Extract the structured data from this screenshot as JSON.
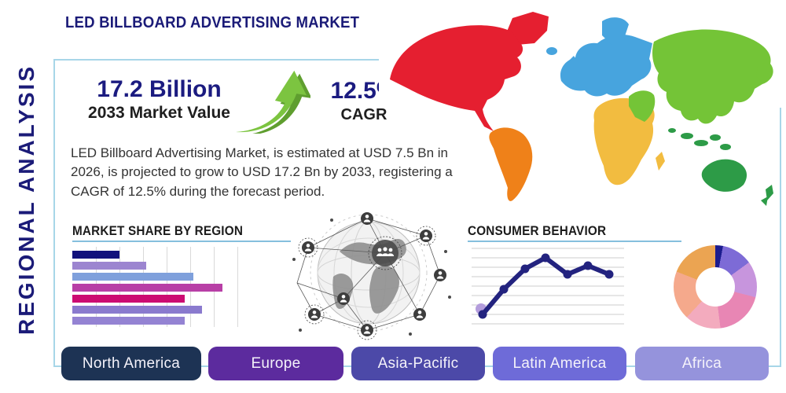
{
  "title": "LED BILLBOARD ADVERTISING MARKET",
  "side_label": "REGIONAL ANALYSIS",
  "stats": {
    "market_value": "17.2 Billion",
    "market_value_label": "2033 Market Value",
    "cagr_value": "12.5%",
    "cagr_label": "CAGR"
  },
  "description": "LED Billboard Advertising Market, is estimated at USD 7.5 Bn in 2026, is projected to grow to USD 17.2 Bn by 2033, registering a CAGR of 12.5% during the forecast period.",
  "sections": {
    "market_share_title": "MARKET SHARE BY REGION",
    "consumer_behavior_title": "CONSUMER BEHAVIOR"
  },
  "region_buttons": [
    {
      "label": "North America",
      "color": "#1d3354"
    },
    {
      "label": "Europe",
      "color": "#5c2b9e"
    },
    {
      "label": "Asia-Pacific",
      "color": "#4c49a8"
    },
    {
      "label": "Latin America",
      "color": "#6e6bd8"
    },
    {
      "label": "Africa",
      "color": "#9593dc"
    }
  ],
  "accent_colors": {
    "navy": "#1b1b78",
    "panel_border": "#a7d6e8",
    "heading_underline": "#85bfdd",
    "growth_arrow_green": "#7cc440",
    "growth_arrow_shadow": "#5f9e2f"
  },
  "map": {
    "region_colors": {
      "north_america": "#e51f30",
      "greenland": "#e51f30",
      "south_america": "#ef8119",
      "europe": "#47a4de",
      "africa": "#f2bc40",
      "asia": "#74c437",
      "middle_east": "#74c437",
      "australia": "#2d9b47",
      "islands": "#2d9b47"
    }
  },
  "chart_data": [
    {
      "type": "bar",
      "title": "MARKET SHARE BY REGION",
      "orientation": "horizontal",
      "categories": [
        "",
        "",
        "",
        "",
        "",
        "",
        ""
      ],
      "values": [
        21,
        33,
        54,
        67,
        50,
        58,
        50
      ],
      "colors": [
        "#12127c",
        "#9c85d0",
        "#7fa0dc",
        "#b83fa6",
        "#cc0b72",
        "#8a7ace",
        "#9483d3"
      ],
      "xlabel": "",
      "ylabel": "",
      "xlim": [
        0,
        100
      ],
      "grid": true,
      "gridlines": 7
    },
    {
      "type": "line",
      "title": "CONSUMER BEHAVIOR",
      "x": [
        1,
        2,
        3,
        4,
        5,
        6,
        7
      ],
      "values": [
        12,
        45,
        72,
        87,
        65,
        76,
        65
      ],
      "ylim": [
        0,
        100
      ],
      "color": "#23237f",
      "marker": "circle",
      "first_point_halo_color": "#b49ddc",
      "grid": true,
      "gridlines": 9
    },
    {
      "type": "donut",
      "title": "",
      "values": [
        3,
        12,
        14,
        19,
        14,
        19,
        19
      ],
      "colors": [
        "#1c1c8e",
        "#7d6bd6",
        "#c795dd",
        "#e886b4",
        "#f3abbe",
        "#f5a98c",
        "#eba452"
      ],
      "start_angle_deg": 0
    }
  ]
}
